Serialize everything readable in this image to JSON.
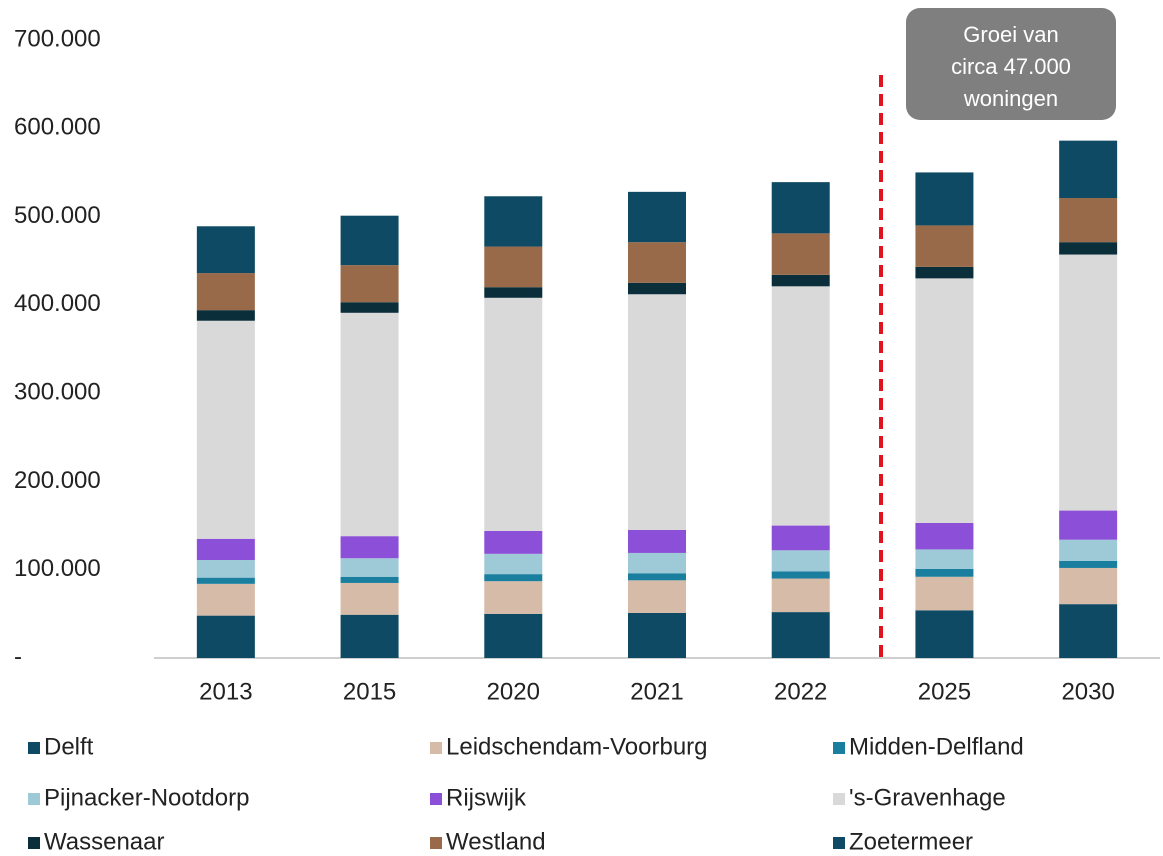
{
  "chart_data": {
    "type": "stacked_bar",
    "categories": [
      "2013",
      "2015",
      "2020",
      "2021",
      "2022",
      "2025",
      "2030"
    ],
    "series": [
      {
        "name": "Delft",
        "color": "#0e4a63",
        "values": [
          48000,
          49000,
          50000,
          51000,
          52000,
          54000,
          61000
        ]
      },
      {
        "name": "Leidschendam-Voorburg",
        "color": "#d6bba8",
        "values": [
          36000,
          36000,
          37000,
          37000,
          38000,
          38000,
          41000
        ]
      },
      {
        "name": "Midden-Delfland",
        "color": "#1a7e9e",
        "values": [
          7000,
          7000,
          8000,
          8000,
          8000,
          9000,
          8000
        ]
      },
      {
        "name": "Pijnacker-Nootdorp",
        "color": "#9ecad8",
        "values": [
          20000,
          21000,
          23000,
          23000,
          24000,
          22000,
          24000
        ]
      },
      {
        "name": "Rijswijk",
        "color": "#8c4fd8",
        "values": [
          24000,
          25000,
          26000,
          26000,
          28000,
          30000,
          33000
        ]
      },
      {
        "name": "'s-Gravenhage",
        "color": "#d9d9d9",
        "values": [
          247000,
          253000,
          264000,
          267000,
          271000,
          277000,
          290000
        ]
      },
      {
        "name": "Wassenaar",
        "color": "#0a2f3a",
        "values": [
          12000,
          12000,
          12000,
          13000,
          13000,
          13000,
          14000
        ]
      },
      {
        "name": "Westland",
        "color": "#986a4a",
        "values": [
          42000,
          42000,
          46000,
          46000,
          47000,
          47000,
          50000
        ]
      },
      {
        "name": "Zoetermeer",
        "color": "#0e4a63",
        "values": [
          53000,
          56000,
          57000,
          57000,
          58000,
          60000,
          65000
        ]
      }
    ],
    "ylim": [
      0,
      700000
    ],
    "yticks": [
      {
        "value": 0,
        "label": "-"
      },
      {
        "value": 100000,
        "label": "100.000"
      },
      {
        "value": 200000,
        "label": "200.000"
      },
      {
        "value": 300000,
        "label": "300.000"
      },
      {
        "value": 400000,
        "label": "400.000"
      },
      {
        "value": 500000,
        "label": "500.000"
      },
      {
        "value": 600000,
        "label": "600.000"
      },
      {
        "value": 700000,
        "label": "700.000"
      }
    ],
    "annotation": [
      "Groei van",
      "circa 47.000",
      "woningen"
    ],
    "legend": "bottom"
  }
}
